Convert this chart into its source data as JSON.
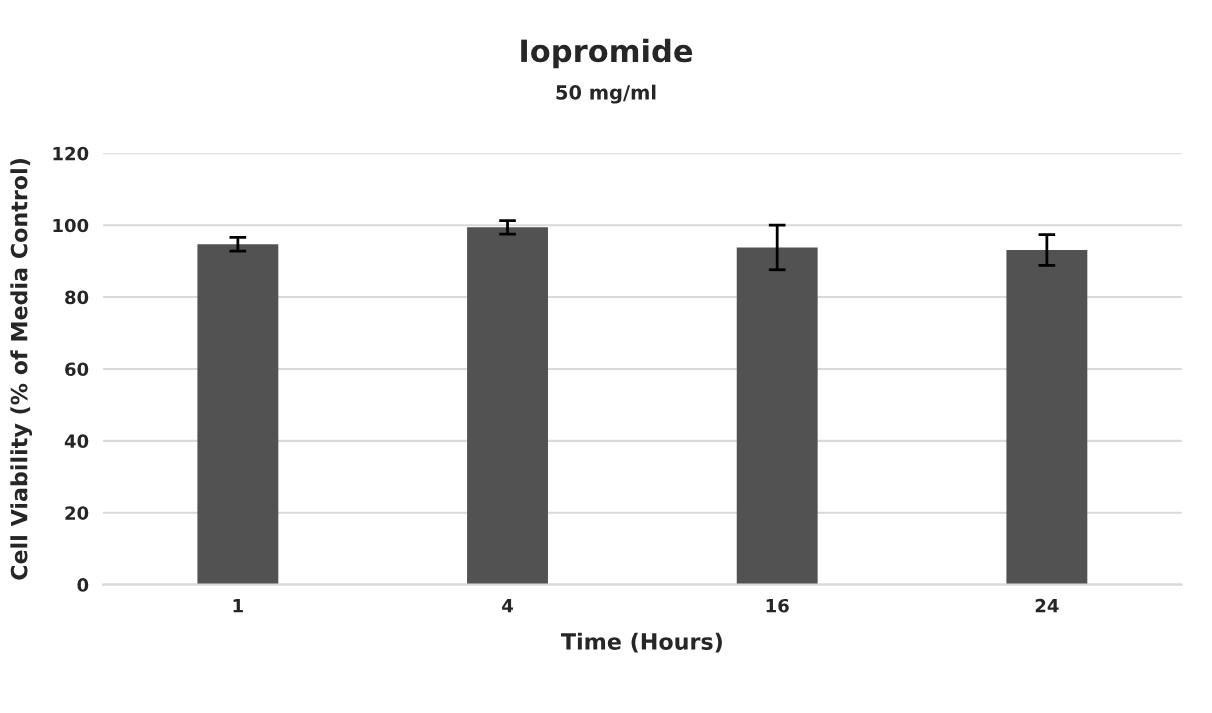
{
  "chart_data": {
    "type": "bar",
    "title": "Iopromide",
    "subtitle": "50 mg/ml",
    "xlabel": "Time (Hours)",
    "ylabel": "Cell Viability (% of Media Control)",
    "categories": [
      "1",
      "4",
      "16",
      "24"
    ],
    "values": [
      94.7,
      99.4,
      93.8,
      93.1
    ],
    "errors": [
      1.9,
      1.9,
      6.2,
      4.3
    ],
    "color": "#525252",
    "ylim": [
      0,
      120
    ],
    "yticks": [
      0,
      20,
      40,
      60,
      80,
      100,
      120
    ],
    "grid": "y"
  }
}
